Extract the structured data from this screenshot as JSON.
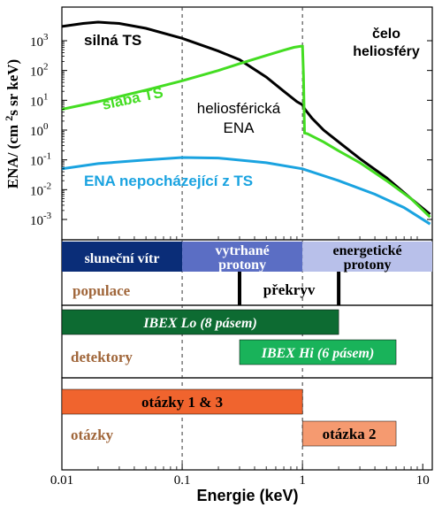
{
  "chart_data": {
    "type": "line",
    "xlabel": "Energie (keV)",
    "ylabel": "ENA/ (cm²s sr keV)",
    "x_scale": "log",
    "y_scale": "log",
    "xlim": [
      0.01,
      12
    ],
    "ylim": [
      0.0005,
      10000
    ],
    "x_ticks": [
      "0.01",
      "0.1",
      "1",
      "10"
    ],
    "y_ticks": [
      {
        "base": "10",
        "exp": "3"
      },
      {
        "base": "10",
        "exp": "2"
      },
      {
        "base": "10",
        "exp": "1"
      },
      {
        "base": "10",
        "exp": "0"
      },
      {
        "base": "10",
        "exp": "-1"
      },
      {
        "base": "10",
        "exp": "-2"
      },
      {
        "base": "10",
        "exp": "-3"
      }
    ],
    "series": [
      {
        "name": "silná TS",
        "color": "#000000",
        "points": [
          [
            0.01,
            3000
          ],
          [
            0.015,
            3800
          ],
          [
            0.02,
            4200
          ],
          [
            0.03,
            3800
          ],
          [
            0.05,
            2600
          ],
          [
            0.1,
            1200
          ],
          [
            0.2,
            450
          ],
          [
            0.3,
            230
          ],
          [
            0.5,
            60
          ],
          [
            0.7,
            20
          ],
          [
            0.9,
            9
          ],
          [
            1.0,
            7
          ],
          [
            1.05,
            5
          ],
          [
            1.2,
            2.5
          ],
          [
            1.5,
            1.0
          ],
          [
            2.0,
            0.4
          ],
          [
            3.0,
            0.11
          ],
          [
            5.0,
            0.025
          ],
          [
            8.0,
            0.005
          ],
          [
            11.5,
            0.0015
          ]
        ]
      },
      {
        "name": "slabá TS",
        "color": "#44dd22",
        "points": [
          [
            0.01,
            5
          ],
          [
            0.02,
            9
          ],
          [
            0.05,
            22
          ],
          [
            0.1,
            45
          ],
          [
            0.2,
            100
          ],
          [
            0.3,
            170
          ],
          [
            0.5,
            320
          ],
          [
            0.7,
            480
          ],
          [
            0.85,
            600
          ],
          [
            0.98,
            660
          ],
          [
            1.0,
            650
          ],
          [
            1.02,
            70
          ],
          [
            1.04,
            0.8
          ],
          [
            1.1,
            0.75
          ],
          [
            1.5,
            0.4
          ],
          [
            2.0,
            0.2
          ],
          [
            3.0,
            0.08
          ],
          [
            5.0,
            0.02
          ],
          [
            8.0,
            0.005
          ],
          [
            11.5,
            0.0012
          ]
        ]
      },
      {
        "name": "ENA nepocházející z TS",
        "color": "#1aa3e0",
        "points": [
          [
            0.01,
            0.05
          ],
          [
            0.02,
            0.075
          ],
          [
            0.05,
            0.1
          ],
          [
            0.1,
            0.12
          ],
          [
            0.2,
            0.115
          ],
          [
            0.5,
            0.08
          ],
          [
            1.0,
            0.05
          ],
          [
            2.0,
            0.02
          ],
          [
            4.0,
            0.007
          ],
          [
            7.0,
            0.0025
          ],
          [
            11.5,
            0.0007
          ]
        ]
      }
    ],
    "annotations": {
      "heliosphere_label": "heliosférická\nENA",
      "heliopause_label": "čelo\nheliosféry"
    },
    "vlines": [
      0.1,
      1
    ],
    "grid": false
  },
  "bands": {
    "population": {
      "title": "populace",
      "color": "#a0663a",
      "segments": [
        {
          "label": "sluneční vítr",
          "from": 0.01,
          "to": 0.1,
          "fill": "#0a2d78",
          "text_color": "#ffffff"
        },
        {
          "label": "vytrhané protony",
          "from": 0.1,
          "to": 1,
          "fill": "#5b6ec4",
          "text_color": "#ffffff"
        },
        {
          "label": "energetické protony",
          "from": 1,
          "to": 12,
          "fill": "#b8c0ea",
          "text_color": "#000000"
        }
      ],
      "overlap_label": "překryv",
      "overlap_from": 0.3,
      "overlap_to": 2
    },
    "detectors": {
      "title": "detektory",
      "color": "#a0663a",
      "instruments": [
        {
          "label": "IBEX Lo (8 pásem)",
          "from": 0.01,
          "to": 2,
          "fill": "#0d6b32"
        },
        {
          "label": "IBEX Hi (6 pásem)",
          "from": 0.3,
          "to": 6,
          "fill": "#19b35a"
        }
      ]
    },
    "questions": {
      "title": "otázky",
      "color": "#a0663a",
      "items": [
        {
          "label": "otázky 1 & 3",
          "from": 0.01,
          "to": 1,
          "fill": "#f0642e"
        },
        {
          "label": "otázka 2",
          "from": 1,
          "to": 6,
          "fill": "#f59a70"
        }
      ]
    }
  }
}
